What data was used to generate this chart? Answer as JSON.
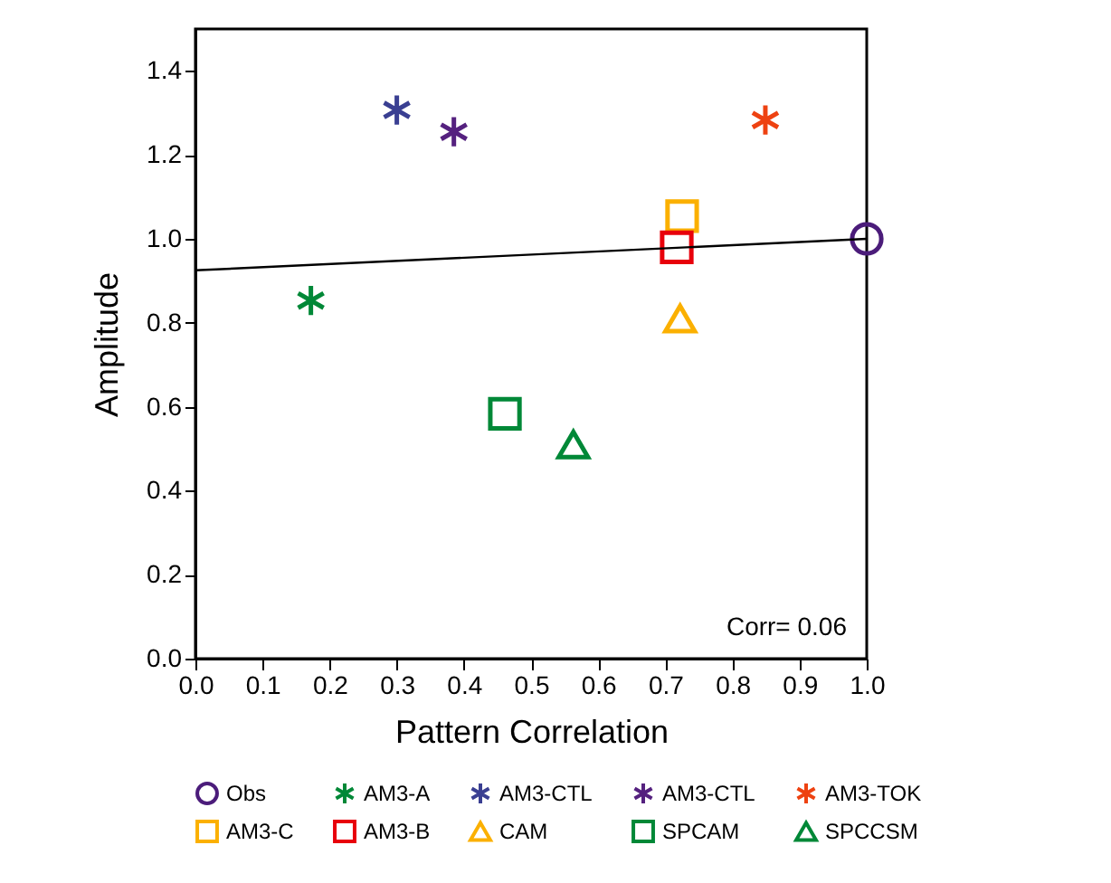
{
  "chart_data": {
    "type": "scatter",
    "xlabel": "Pattern Correlation",
    "ylabel": "Amplitude",
    "xlim": [
      0,
      1
    ],
    "ylim": [
      0,
      1.5
    ],
    "xticks": [
      {
        "value": 0,
        "label": "0.0"
      },
      0.1,
      0.2,
      0.3,
      0.4,
      0.5,
      0.6,
      0.7,
      0.8,
      0.9,
      {
        "value": 1,
        "label": "1.0"
      }
    ],
    "yticks": [
      {
        "value": 0,
        "label": "0.0"
      },
      0.2,
      0.4,
      0.6,
      0.8,
      {
        "value": 1,
        "label": "1.0"
      },
      1.2,
      1.4
    ],
    "legend": "bottom",
    "annotations": [
      "Corr= 0.06"
    ],
    "series": [
      {
        "name": "Obs",
        "color": "#4b1c7a",
        "marker": "circle",
        "x": [
          1.0
        ],
        "values": [
          1.0
        ]
      },
      {
        "name": "AM3-A",
        "color": "#008837",
        "marker": "cross",
        "x": [
          0.172
        ],
        "values": [
          0.853
        ]
      },
      {
        "name": "AM3-CTL",
        "color": "#3a3f92",
        "marker": "cross",
        "x": [
          0.3
        ],
        "values": [
          1.307
        ]
      },
      {
        "name": "AM3-CTL",
        "color": "#55217f",
        "marker": "cross",
        "x": [
          0.385
        ],
        "values": [
          1.255
        ]
      },
      {
        "name": "AM3-TOK",
        "color": "#ee4211",
        "marker": "cross",
        "x": [
          0.849
        ],
        "values": [
          1.283
        ]
      },
      {
        "name": "AM3-C",
        "color": "#fbb000",
        "marker": "square",
        "x": [
          0.725
        ],
        "values": [
          1.054
        ]
      },
      {
        "name": "AM3-B",
        "color": "#e8000b",
        "marker": "square",
        "x": [
          0.717
        ],
        "values": [
          0.98
        ]
      },
      {
        "name": "CAM",
        "color": "#fbb000",
        "marker": "triangle",
        "x": [
          0.722
        ],
        "values": [
          0.81
        ]
      },
      {
        "name": "SPCAM",
        "color": "#008837",
        "marker": "square",
        "x": [
          0.461
        ],
        "values": [
          0.583
        ]
      },
      {
        "name": "SPCCSM",
        "color": "#008837",
        "marker": "triangle",
        "x": [
          0.563
        ],
        "values": [
          0.51
        ]
      },
      {
        "type": "line",
        "color": "#000000",
        "x": [
          0,
          1
        ],
        "values": [
          0.925,
          1.0
        ]
      }
    ]
  }
}
